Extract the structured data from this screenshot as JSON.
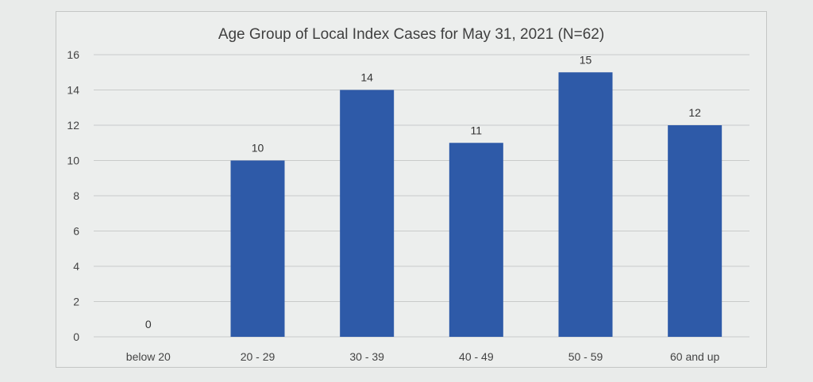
{
  "chart_data": {
    "type": "bar",
    "title": "Age Group of Local Index Cases for May 31, 2021 (N=62)",
    "categories": [
      "below 20",
      "20 - 29",
      "30 - 39",
      "40 - 49",
      "50 - 59",
      "60 and up"
    ],
    "values": [
      0,
      10,
      14,
      11,
      15,
      12
    ],
    "xlabel": "",
    "ylabel": "",
    "ylim": [
      0,
      16
    ],
    "yticks": [
      0,
      2,
      4,
      6,
      8,
      10,
      12,
      14,
      16
    ],
    "grid": true,
    "legend": "none",
    "bar_color": "#2e5aa8",
    "grid_color": "#c9cbca"
  }
}
